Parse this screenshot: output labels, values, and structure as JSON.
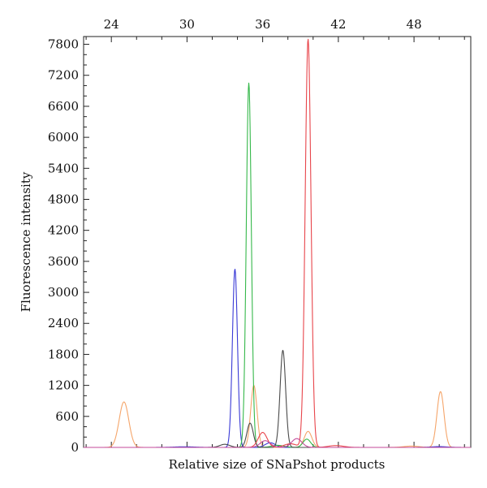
{
  "chart_data": {
    "type": "line",
    "title": "",
    "xlabel": "Relative size of SNaPshot products",
    "ylabel": "Fluorescence intensity",
    "xlim": [
      21.8,
      52.5
    ],
    "ylim": [
      0,
      7950
    ],
    "x_ticks": [
      24,
      30,
      36,
      42,
      48
    ],
    "y_ticks": [
      0,
      600,
      1200,
      1800,
      2400,
      3000,
      3600,
      4200,
      4800,
      5400,
      6000,
      6600,
      7200,
      7800
    ],
    "x_tick_labels": [
      "24",
      "30",
      "36",
      "42",
      "48"
    ],
    "y_tick_labels": [
      "0",
      "600",
      "1200",
      "1800",
      "2400",
      "3000",
      "3600",
      "4200",
      "4800",
      "5400",
      "6000",
      "6600",
      "7200",
      "7800"
    ],
    "x_axis_position": "top",
    "grid": false,
    "legend": "none",
    "series": [
      {
        "name": "orange",
        "color": "#f5a56a",
        "peaks": [
          {
            "x": 25.0,
            "height": 880,
            "width": 0.38
          },
          {
            "x": 35.3,
            "height": 1200,
            "width": 0.25
          },
          {
            "x": 39.6,
            "height": 310,
            "width": 0.3
          },
          {
            "x": 50.1,
            "height": 1080,
            "width": 0.28
          },
          {
            "x": 47.8,
            "height": 25,
            "width": 0.6
          }
        ]
      },
      {
        "name": "blue",
        "color": "#3a3ad6",
        "peaks": [
          {
            "x": 33.8,
            "height": 3450,
            "width": 0.2
          },
          {
            "x": 36.6,
            "height": 90,
            "width": 0.4
          },
          {
            "x": 29.8,
            "height": 12,
            "width": 0.8
          },
          {
            "x": 50.0,
            "height": 15,
            "width": 0.6
          }
        ]
      },
      {
        "name": "green",
        "color": "#35b84a",
        "peaks": [
          {
            "x": 34.9,
            "height": 7050,
            "width": 0.2
          },
          {
            "x": 39.5,
            "height": 160,
            "width": 0.3
          },
          {
            "x": 37.2,
            "height": 40,
            "width": 0.5
          }
        ]
      },
      {
        "name": "black",
        "color": "#4a4a4a",
        "peaks": [
          {
            "x": 37.6,
            "height": 1880,
            "width": 0.22
          },
          {
            "x": 35.0,
            "height": 470,
            "width": 0.25
          },
          {
            "x": 33.0,
            "height": 60,
            "width": 0.4
          }
        ]
      },
      {
        "name": "red",
        "color": "#e8454b",
        "peaks": [
          {
            "x": 39.6,
            "height": 7900,
            "width": 0.23
          },
          {
            "x": 36.0,
            "height": 290,
            "width": 0.35
          },
          {
            "x": 38.2,
            "height": 70,
            "width": 0.5
          },
          {
            "x": 41.8,
            "height": 35,
            "width": 0.6
          }
        ]
      },
      {
        "name": "magenta",
        "color": "#c44a9a",
        "peaks": [
          {
            "x": 38.7,
            "height": 170,
            "width": 0.4
          },
          {
            "x": 36.2,
            "height": 130,
            "width": 0.4
          }
        ]
      }
    ]
  }
}
